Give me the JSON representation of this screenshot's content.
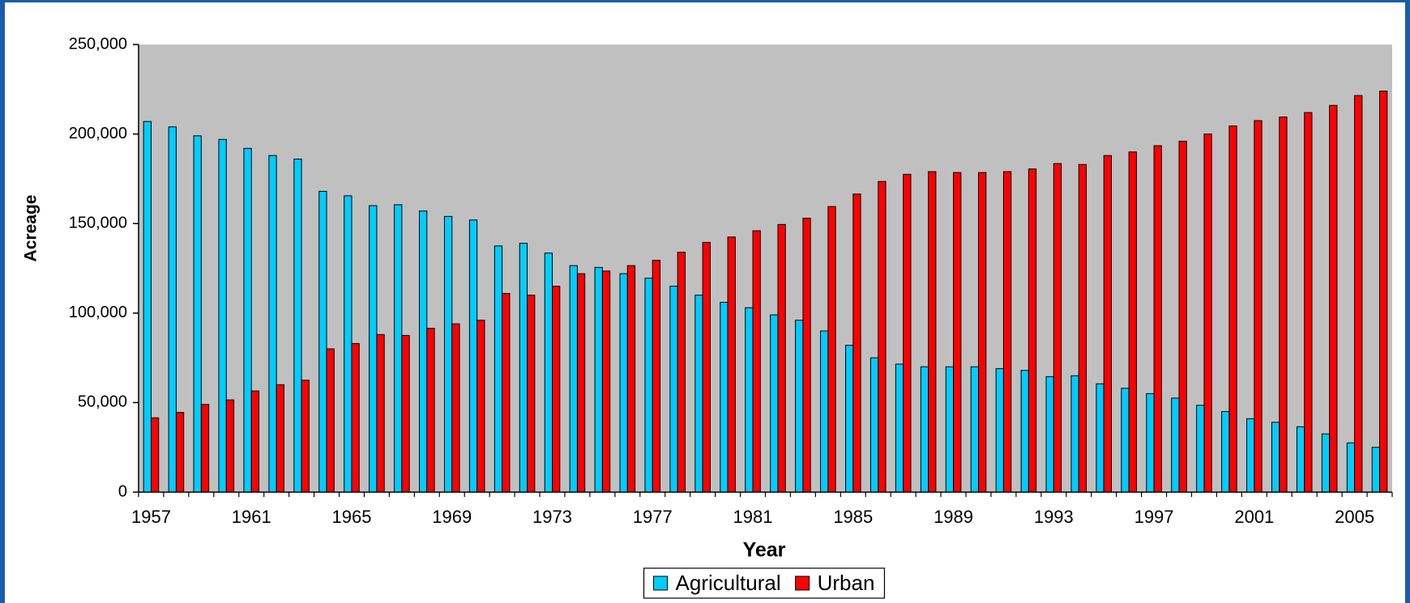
{
  "chart_data": {
    "type": "bar",
    "x_label": "Year",
    "y_label": "Acreage",
    "categories": [
      "1957",
      null,
      null,
      null,
      "1961",
      null,
      null,
      null,
      "1965",
      null,
      null,
      null,
      "1969",
      null,
      null,
      null,
      "1973",
      null,
      null,
      null,
      "1977",
      null,
      null,
      null,
      "1981",
      null,
      null,
      null,
      "1985",
      null,
      null,
      null,
      "1989",
      null,
      null,
      null,
      "1993",
      null,
      null,
      null,
      "1997",
      null,
      null,
      null,
      "2001",
      null,
      null,
      null,
      "2005",
      null
    ],
    "series": [
      {
        "name": "Agricultural",
        "color": "#00ccff",
        "values": [
          207000,
          204000,
          199000,
          197000,
          192000,
          188000,
          186000,
          168000,
          165500,
          160000,
          160500,
          157000,
          154000,
          152000,
          137500,
          139000,
          133500,
          126500,
          125500,
          122000,
          119500,
          115000,
          110000,
          106000,
          103000,
          99000,
          96000,
          90000,
          82000,
          75000,
          71500,
          70000,
          70000,
          70000,
          69000,
          68000,
          64500,
          65000,
          60500,
          58000,
          55000,
          52500,
          48500,
          45000,
          41000,
          39000,
          36500,
          32500,
          27500,
          25000
        ]
      },
      {
        "name": "Urban",
        "color": "#ff0000",
        "values": [
          41500,
          44500,
          49000,
          51500,
          56500,
          60000,
          62500,
          80000,
          83000,
          88000,
          87500,
          91500,
          94000,
          96000,
          111000,
          110000,
          115000,
          122000,
          123500,
          126500,
          129500,
          134000,
          139500,
          142500,
          146000,
          149500,
          153000,
          159500,
          166500,
          173500,
          177500,
          179000,
          178500,
          178500,
          179000,
          180500,
          183500,
          183000,
          188000,
          190000,
          193500,
          196000,
          200000,
          204500,
          207500,
          209500,
          212000,
          216000,
          221500,
          224000
        ]
      }
    ],
    "ylim": [
      0,
      250000
    ],
    "yticks": [
      0,
      {
        "value": 50000,
        "label": "50,000"
      },
      {
        "value": 100000,
        "label": "100,000"
      },
      {
        "value": 150000,
        "label": "150,000"
      },
      {
        "value": 200000,
        "label": "200,000"
      },
      {
        "value": 250000,
        "label": "250,000"
      }
    ],
    "plot_background": "#c0c0c0",
    "legend": "bottom"
  }
}
